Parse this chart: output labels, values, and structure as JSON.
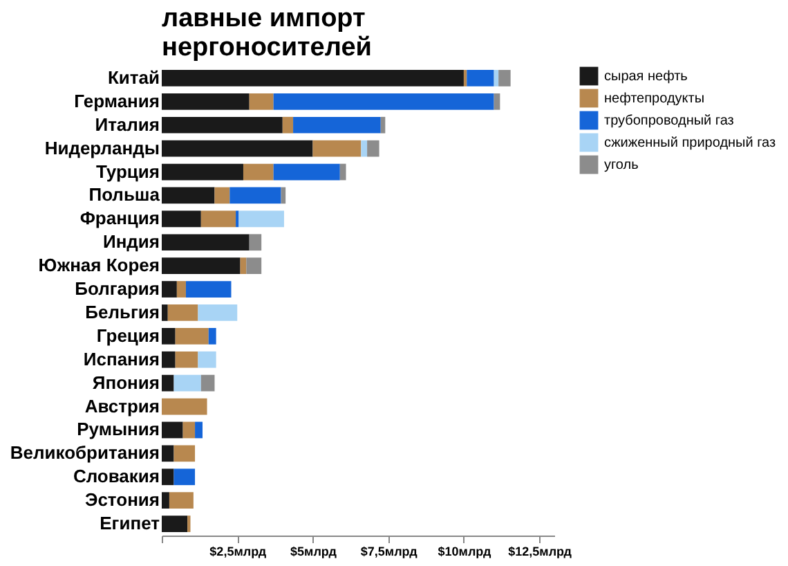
{
  "chart_data": {
    "type": "bar",
    "orientation": "horizontal",
    "stacked": true,
    "title": "лавные импорт\nнергоносителей",
    "categories": [
      "Китай",
      "Германия",
      "Италия",
      "Нидерланды",
      "Турция",
      "Польша",
      "Франция",
      "Индия",
      "Южная Корея",
      "Болгария",
      "Бельгия",
      "Греция",
      "Испания",
      "Япония",
      "Австрия",
      "Румыния",
      "Великобритания",
      "Словакия",
      "Эстония",
      "Египет"
    ],
    "series": [
      {
        "name": "сырая нефть",
        "color": "#1a1a1a",
        "values": [
          10.0,
          2.9,
          4.0,
          5.0,
          2.7,
          1.75,
          1.3,
          2.9,
          2.6,
          0.5,
          0.2,
          0.45,
          0.45,
          0.4,
          null,
          0.7,
          0.4,
          0.4,
          0.25,
          0.85
        ]
      },
      {
        "name": "нефтепродукты",
        "color": "#b8884f",
        "values": [
          0.1,
          0.8,
          0.35,
          1.6,
          1.0,
          0.5,
          1.15,
          null,
          0.2,
          0.3,
          1.0,
          1.1,
          0.75,
          null,
          1.5,
          0.4,
          0.7,
          null,
          0.8,
          0.1
        ]
      },
      {
        "name": "трубопроводный газ",
        "color": "#1565d8",
        "values": [
          0.9,
          7.3,
          2.9,
          null,
          2.2,
          1.7,
          0.1,
          null,
          null,
          1.5,
          null,
          0.25,
          null,
          null,
          null,
          0.25,
          null,
          0.7,
          null,
          null
        ]
      },
      {
        "name": "сжиженный природный газ",
        "color": "#a8d4f5",
        "values": [
          0.15,
          null,
          null,
          0.2,
          null,
          null,
          1.5,
          null,
          null,
          null,
          1.3,
          null,
          0.6,
          0.9,
          null,
          null,
          null,
          null,
          null,
          null
        ]
      },
      {
        "name": "уголь",
        "color": "#8c8c8c",
        "values": [
          0.4,
          0.2,
          0.15,
          0.4,
          0.2,
          0.15,
          null,
          0.4,
          0.5,
          null,
          null,
          null,
          null,
          0.45,
          null,
          null,
          null,
          null,
          null,
          null
        ]
      }
    ],
    "xlim": [
      0,
      13
    ],
    "xticks": [
      {
        "value": 0,
        "label": null
      },
      {
        "value": 2.5,
        "label": "$2,5млрд"
      },
      {
        "value": 5,
        "label": "$5млрд"
      },
      {
        "value": 7.5,
        "label": "$7,5млрд"
      },
      {
        "value": 10,
        "label": "$10млрд"
      },
      {
        "value": 12.5,
        "label": "$12,5млрд"
      }
    ],
    "legend": "right"
  }
}
